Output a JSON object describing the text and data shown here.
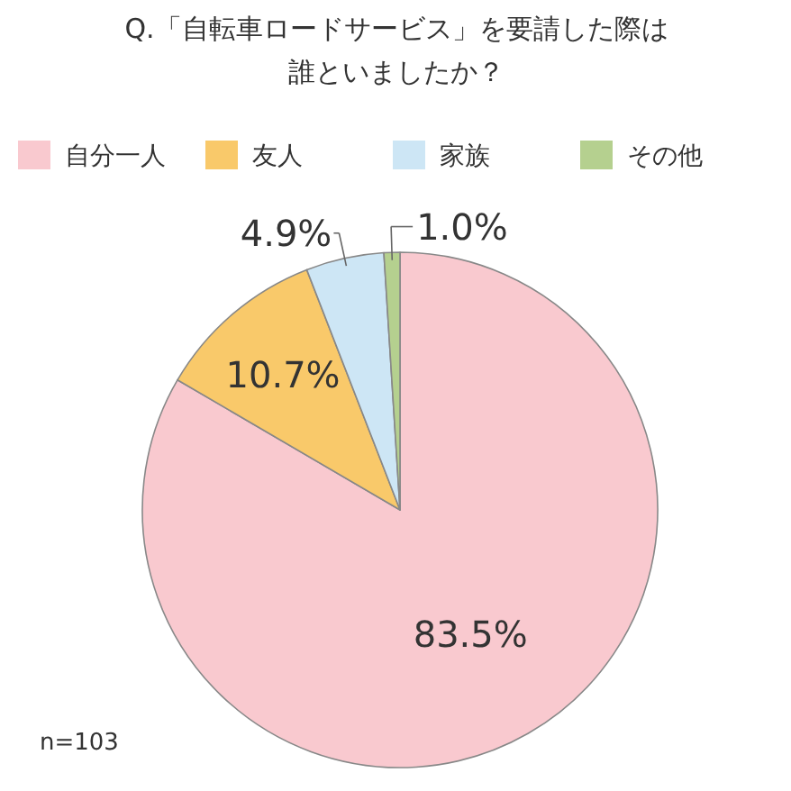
{
  "chart_data": {
    "type": "pie",
    "title": "Q.「自転車ロードサービス」を要請した際は誰といましたか？",
    "categories": [
      "自分一人",
      "友人",
      "家族",
      "その他"
    ],
    "values": [
      83.5,
      10.7,
      4.9,
      1.0
    ],
    "colors": [
      "#f9c9cf",
      "#f9c96a",
      "#cde6f5",
      "#b5d08f"
    ],
    "value_labels": [
      "83.5%",
      "10.7%",
      "4.9%",
      "1.0%"
    ],
    "legend": "top",
    "annotations": [
      "n=103"
    ]
  }
}
